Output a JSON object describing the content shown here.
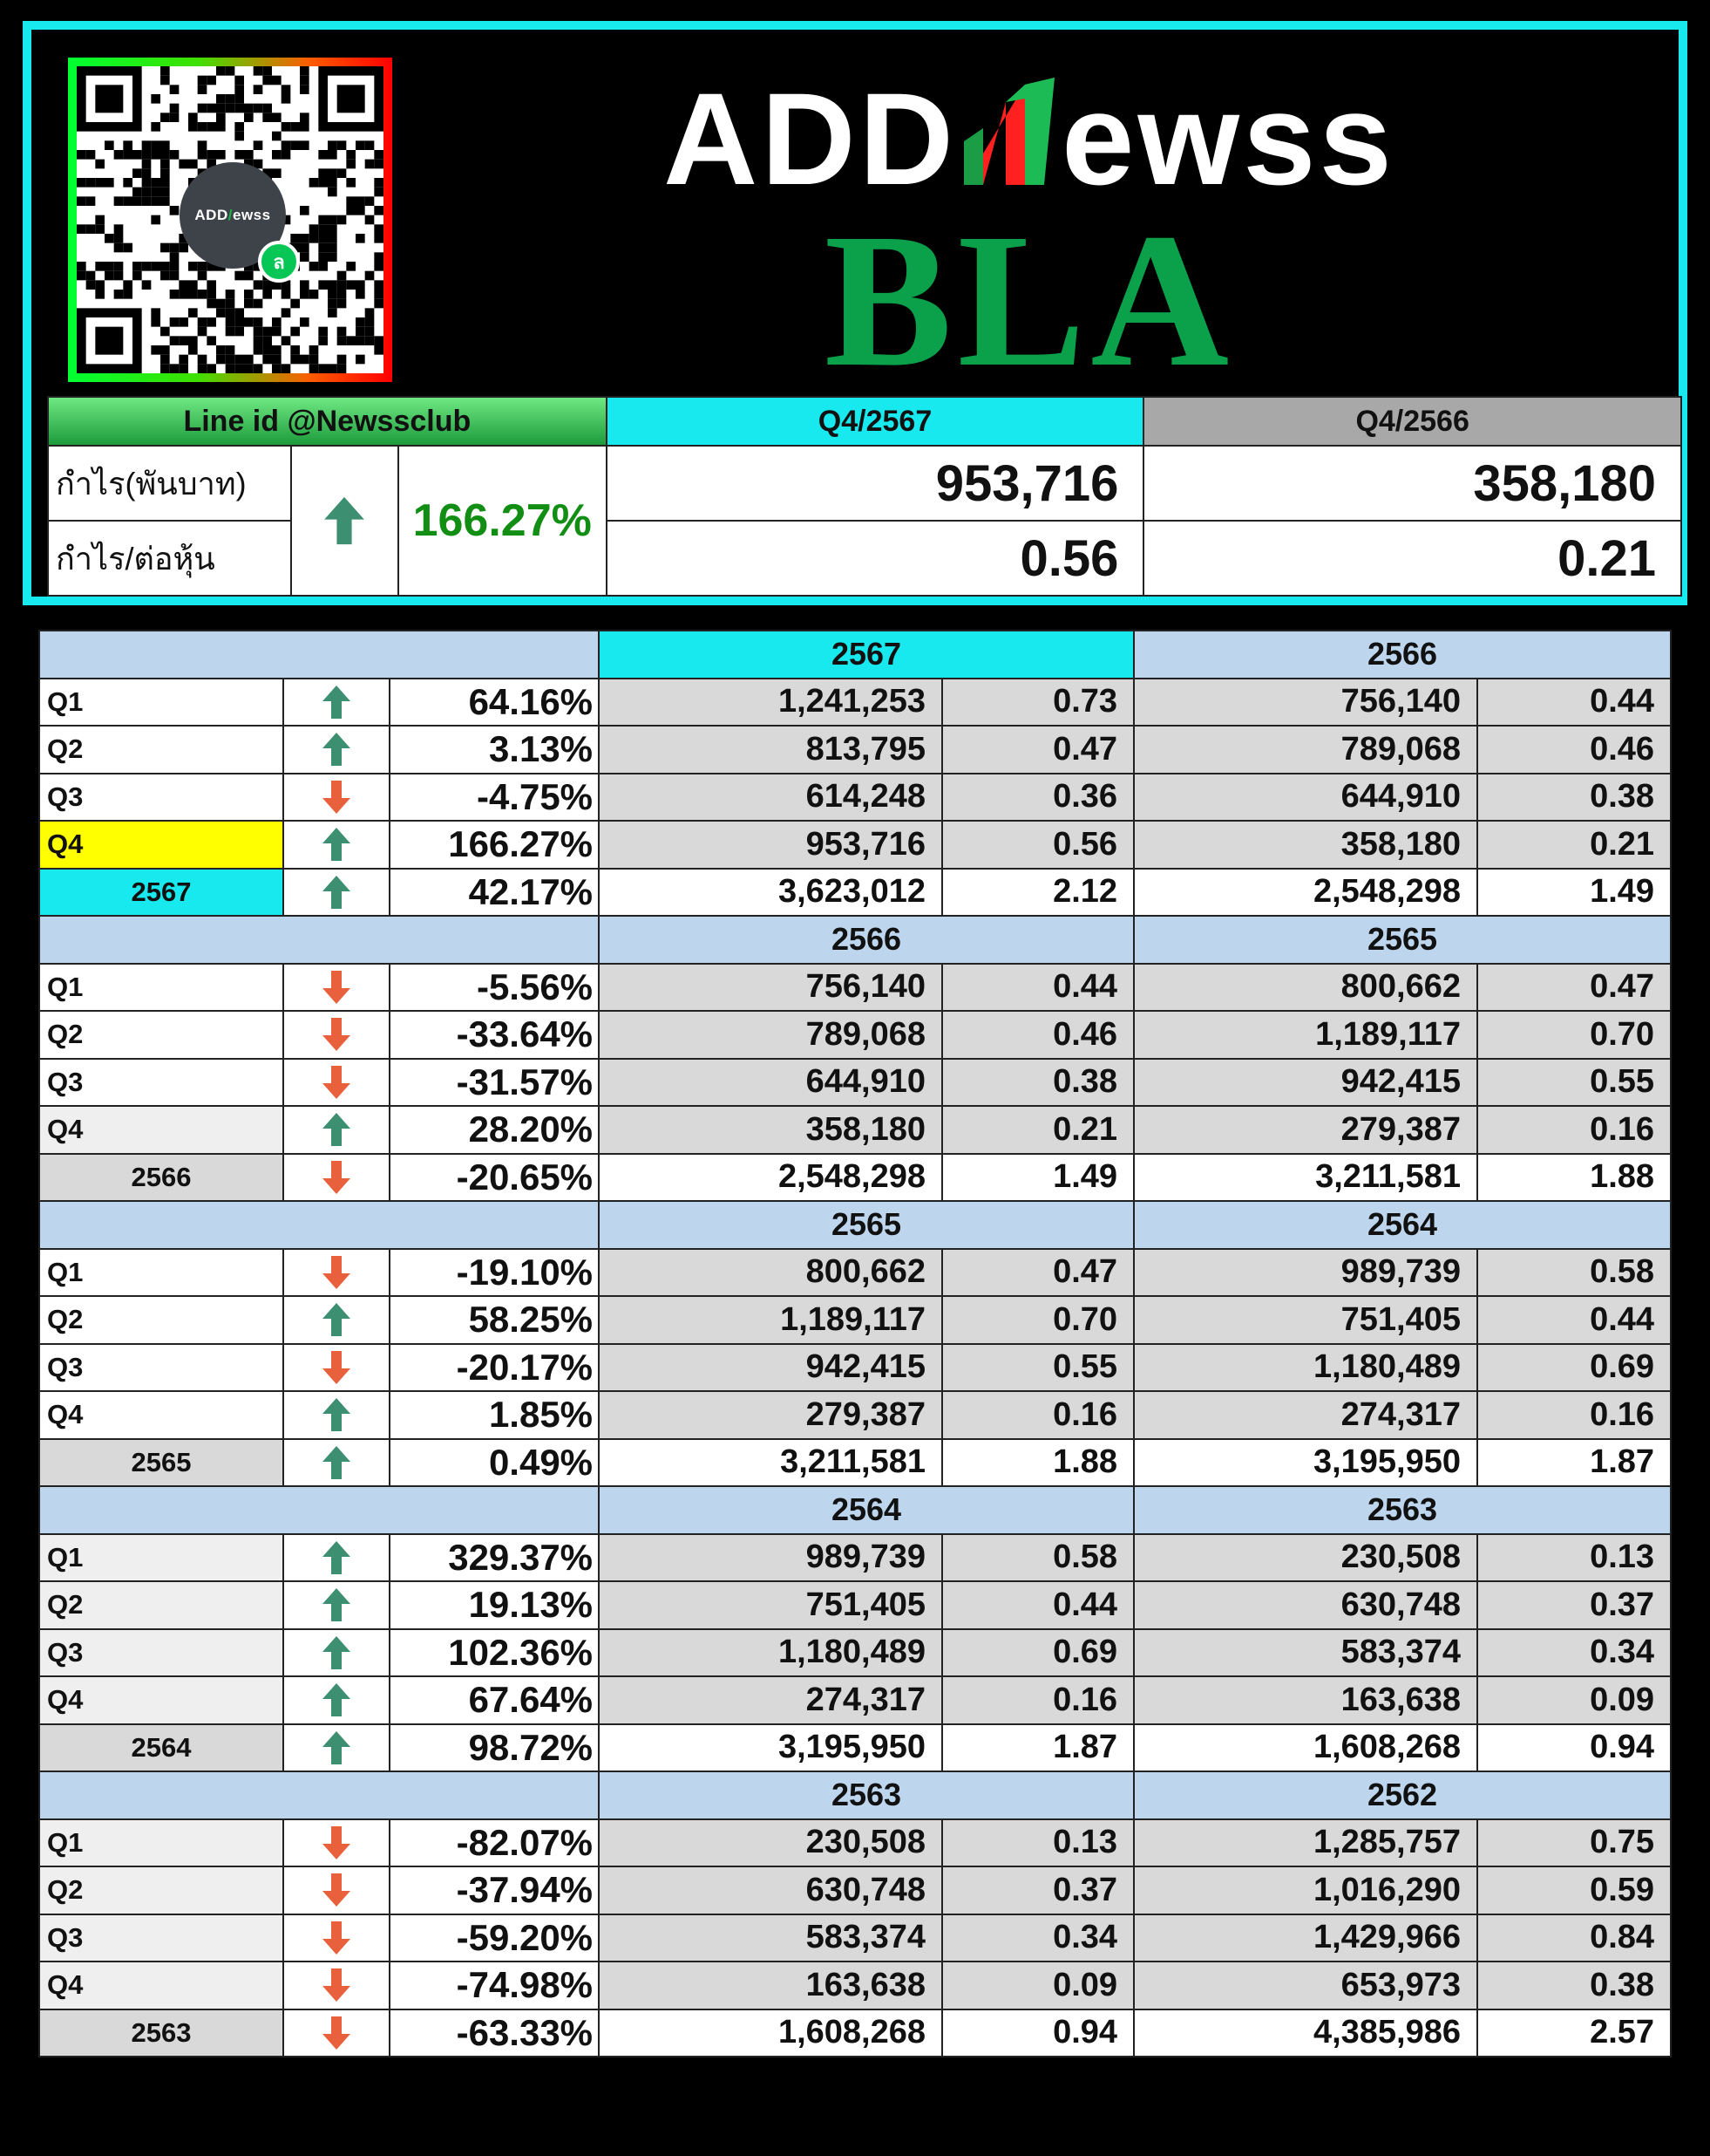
{
  "brand": {
    "logo_left": "ADD",
    "logo_right": "ewss",
    "qr_badge_left": "ADD",
    "qr_badge_right": "ewss",
    "qr_line_glyph": "ล",
    "ticker": "BLA"
  },
  "summary": {
    "line_id": "Line id @Newssclub",
    "period_current": "Q4/2567",
    "period_previous": "Q4/2566",
    "profit_label": "กำไร(พันบาท)",
    "eps_label": "กำไร/ต่อหุ้น",
    "change_pct": "166.27%",
    "direction": "up",
    "profit_current": "953,716",
    "profit_previous": "358,180",
    "eps_current": "0.56",
    "eps_previous": "0.21"
  },
  "colors": {
    "up": "#138e15",
    "down": "#ff1f1f",
    "arrow_up": "#3c8f71",
    "arrow_down": "#e8603c",
    "cyan": "#18e9ef",
    "band_blue": "#bdd6ee"
  },
  "sections": [
    {
      "year_current": "2567",
      "year_previous": "2566",
      "current_highlight": true,
      "rows": [
        {
          "label": "Q1",
          "dir": "up",
          "pct": "64.16%",
          "profit_cur": "1,241,253",
          "eps_cur": "0.73",
          "profit_prev": "756,140",
          "eps_prev": "0.44"
        },
        {
          "label": "Q2",
          "dir": "up",
          "pct": "3.13%",
          "profit_cur": "813,795",
          "eps_cur": "0.47",
          "profit_prev": "789,068",
          "eps_prev": "0.46"
        },
        {
          "label": "Q3",
          "dir": "down",
          "pct": "-4.75%",
          "profit_cur": "614,248",
          "eps_cur": "0.36",
          "profit_prev": "644,910",
          "eps_prev": "0.38"
        },
        {
          "label": "Q4",
          "dir": "up",
          "pct": "166.27%",
          "profit_cur": "953,716",
          "eps_cur": "0.56",
          "profit_prev": "358,180",
          "eps_prev": "0.21",
          "highlight": true
        }
      ],
      "total": {
        "label": "2567",
        "dir": "up",
        "pct": "42.17%",
        "profit_cur": "3,623,012",
        "eps_cur": "2.12",
        "profit_prev": "2,548,298",
        "eps_prev": "1.49"
      }
    },
    {
      "year_current": "2566",
      "year_previous": "2565",
      "rows": [
        {
          "label": "Q1",
          "dir": "down",
          "pct": "-5.56%",
          "profit_cur": "756,140",
          "eps_cur": "0.44",
          "profit_prev": "800,662",
          "eps_prev": "0.47"
        },
        {
          "label": "Q2",
          "dir": "down",
          "pct": "-33.64%",
          "profit_cur": "789,068",
          "eps_cur": "0.46",
          "profit_prev": "1,189,117",
          "eps_prev": "0.70"
        },
        {
          "label": "Q3",
          "dir": "down",
          "pct": "-31.57%",
          "profit_cur": "644,910",
          "eps_cur": "0.38",
          "profit_prev": "942,415",
          "eps_prev": "0.55"
        },
        {
          "label": "Q4",
          "dir": "up",
          "pct": "28.20%",
          "profit_cur": "358,180",
          "eps_cur": "0.21",
          "profit_prev": "279,387",
          "eps_prev": "0.16"
        }
      ],
      "total": {
        "label": "2566",
        "dir": "down",
        "pct": "-20.65%",
        "profit_cur": "2,548,298",
        "eps_cur": "1.49",
        "profit_prev": "3,211,581",
        "eps_prev": "1.88"
      }
    },
    {
      "year_current": "2565",
      "year_previous": "2564",
      "rows": [
        {
          "label": "Q1",
          "dir": "down",
          "pct": "-19.10%",
          "profit_cur": "800,662",
          "eps_cur": "0.47",
          "profit_prev": "989,739",
          "eps_prev": "0.58"
        },
        {
          "label": "Q2",
          "dir": "up",
          "pct": "58.25%",
          "profit_cur": "1,189,117",
          "eps_cur": "0.70",
          "profit_prev": "751,405",
          "eps_prev": "0.44"
        },
        {
          "label": "Q3",
          "dir": "down",
          "pct": "-20.17%",
          "profit_cur": "942,415",
          "eps_cur": "0.55",
          "profit_prev": "1,180,489",
          "eps_prev": "0.69"
        },
        {
          "label": "Q4",
          "dir": "up",
          "pct": "1.85%",
          "profit_cur": "279,387",
          "eps_cur": "0.16",
          "profit_prev": "274,317",
          "eps_prev": "0.16"
        }
      ],
      "total": {
        "label": "2565",
        "dir": "up",
        "pct": "0.49%",
        "profit_cur": "3,211,581",
        "eps_cur": "1.88",
        "profit_prev": "3,195,950",
        "eps_prev": "1.87"
      }
    },
    {
      "year_current": "2564",
      "year_previous": "2563",
      "rows": [
        {
          "label": "Q1",
          "dir": "up",
          "pct": "329.37%",
          "profit_cur": "989,739",
          "eps_cur": "0.58",
          "profit_prev": "230,508",
          "eps_prev": "0.13"
        },
        {
          "label": "Q2",
          "dir": "up",
          "pct": "19.13%",
          "profit_cur": "751,405",
          "eps_cur": "0.44",
          "profit_prev": "630,748",
          "eps_prev": "0.37"
        },
        {
          "label": "Q3",
          "dir": "up",
          "pct": "102.36%",
          "profit_cur": "1,180,489",
          "eps_cur": "0.69",
          "profit_prev": "583,374",
          "eps_prev": "0.34"
        },
        {
          "label": "Q4",
          "dir": "up",
          "pct": "67.64%",
          "profit_cur": "274,317",
          "eps_cur": "0.16",
          "profit_prev": "163,638",
          "eps_prev": "0.09"
        }
      ],
      "total": {
        "label": "2564",
        "dir": "up",
        "pct": "98.72%",
        "profit_cur": "3,195,950",
        "eps_cur": "1.87",
        "profit_prev": "1,608,268",
        "eps_prev": "0.94"
      }
    },
    {
      "year_current": "2563",
      "year_previous": "2562",
      "rows": [
        {
          "label": "Q1",
          "dir": "down",
          "pct": "-82.07%",
          "profit_cur": "230,508",
          "eps_cur": "0.13",
          "profit_prev": "1,285,757",
          "eps_prev": "0.75"
        },
        {
          "label": "Q2",
          "dir": "down",
          "pct": "-37.94%",
          "profit_cur": "630,748",
          "eps_cur": "0.37",
          "profit_prev": "1,016,290",
          "eps_prev": "0.59"
        },
        {
          "label": "Q3",
          "dir": "down",
          "pct": "-59.20%",
          "profit_cur": "583,374",
          "eps_cur": "0.34",
          "profit_prev": "1,429,966",
          "eps_prev": "0.84"
        },
        {
          "label": "Q4",
          "dir": "down",
          "pct": "-74.98%",
          "profit_cur": "163,638",
          "eps_cur": "0.09",
          "profit_prev": "653,973",
          "eps_prev": "0.38"
        }
      ],
      "total": {
        "label": "2563",
        "dir": "down",
        "pct": "-63.33%",
        "profit_cur": "1,608,268",
        "eps_cur": "0.94",
        "profit_prev": "4,385,986",
        "eps_prev": "2.57"
      }
    }
  ]
}
